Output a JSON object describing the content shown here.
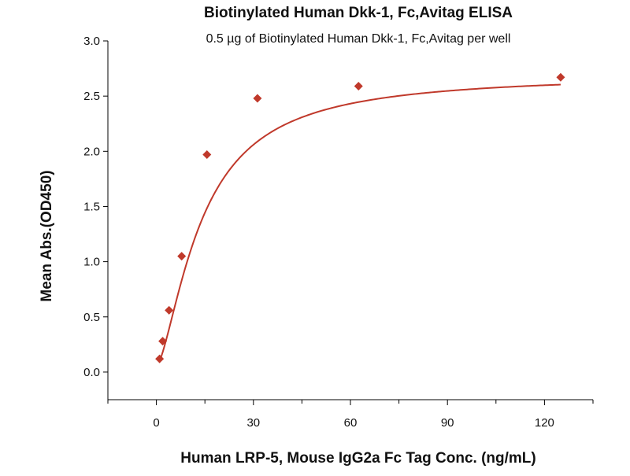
{
  "chart_data": {
    "type": "scatter",
    "title": "Biotinylated Human Dkk-1, Fc,Avitag ELISA",
    "subtitle": "0.5 µg of Biotinylated Human Dkk-1, Fc,Avitag per well",
    "xlabel": "Human LRP-5, Mouse IgG2a Fc Tag Conc. (ng/mL)",
    "ylabel": "Mean Abs.(OD450)",
    "xlim": [
      -15,
      135
    ],
    "ylim": [
      -0.25,
      3.0
    ],
    "xticks": [
      0,
      30,
      60,
      90,
      120
    ],
    "xtick_labels": [
      "0",
      "30",
      "60",
      "90",
      "120"
    ],
    "yticks": [
      0.0,
      0.5,
      1.0,
      1.5,
      2.0,
      2.5,
      3.0
    ],
    "ytick_labels": [
      "0.0",
      "0.5",
      "1.0",
      "1.5",
      "2.0",
      "2.5",
      "3.0"
    ],
    "grid": false,
    "legend": "none",
    "series": [
      {
        "x": [
          0.98,
          1.95,
          3.91,
          7.81,
          15.63,
          31.25,
          62.5,
          125
        ],
        "y": [
          0.12,
          0.28,
          0.56,
          1.05,
          1.97,
          2.48,
          2.59,
          2.67
        ],
        "marker": "diamond",
        "fit": "4pl",
        "color": "#c0392b"
      }
    ]
  }
}
